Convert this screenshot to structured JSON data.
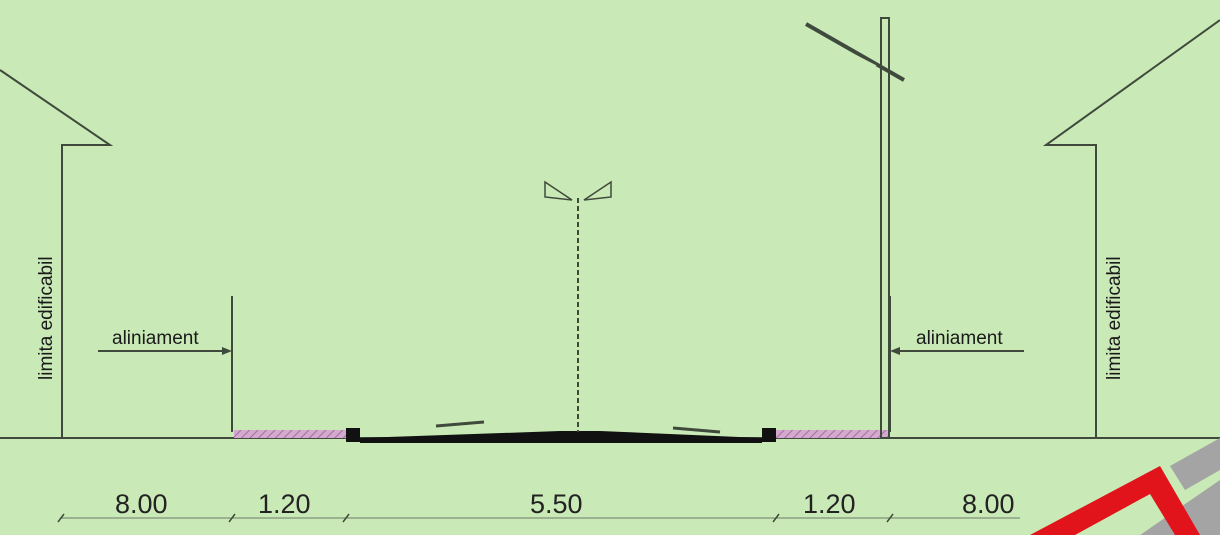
{
  "labels": {
    "building_limit_left": "limita edificabil",
    "building_limit_right": "limita edificabil",
    "alignment_left": "aliniament",
    "alignment_right": "aliniament"
  },
  "dimensions": {
    "setback_left": "8.00",
    "sidewalk_left": "1.20",
    "carriageway": "5.50",
    "sidewalk_right": "1.20",
    "setback_right": "8.00"
  },
  "colors": {
    "background": "#c9e9b6",
    "line": "#3f4a3c",
    "sidewalk_hatch": "#b785b0",
    "corner_red": "#e1141c",
    "corner_gray": "#a4a4a4"
  }
}
